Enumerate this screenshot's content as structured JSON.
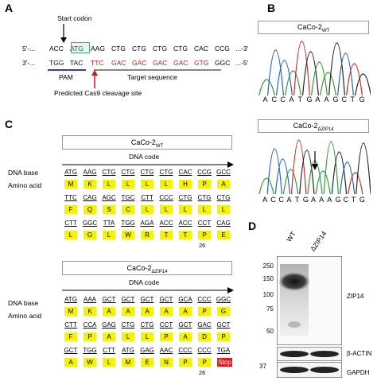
{
  "panels": {
    "A": "A",
    "B": "B",
    "C": "C",
    "D": "D"
  },
  "panelA": {
    "start_codon_label": "Start codon",
    "top_prefix": "5'-...",
    "top_codons": [
      "ACC",
      "ATG",
      "AAG",
      "CTG",
      "CTG",
      "CTG",
      "CTG",
      "CAC",
      "CCG"
    ],
    "top_suffix": "...-3'",
    "bottom_prefix": "3'-...",
    "bottom_black": [
      "TGG",
      "TAC"
    ],
    "bottom_red": [
      "TTC",
      "GAC",
      "GAC",
      "GAC",
      "GAC",
      "GTG"
    ],
    "bottom_tail": "GGC",
    "bottom_suffix": "...-5'",
    "pam_label": "PAM",
    "target_label": "Target sequence",
    "cleavage_label": "Predicted Cas9 cleavage site"
  },
  "panelB": {
    "wt_label": "CaCo-2",
    "wt_sub": "WT",
    "ko_label": "CaCo-2",
    "ko_sub": "ΔZIP14",
    "wt_bases": [
      "A",
      "C",
      "C",
      "A",
      "T",
      "G",
      "A",
      "A",
      "G",
      "C",
      "T",
      "G"
    ],
    "ko_bases": [
      "A",
      "C",
      "C",
      "A",
      "T",
      "G",
      "A",
      "A",
      "A",
      "G",
      "C",
      "T",
      "G"
    ]
  },
  "panelC": {
    "wt": {
      "title": "CaCo-2",
      "title_sub": "WT",
      "dna_code": "DNA code",
      "dna_base": "DNA base",
      "amino_acid": "Amino acid",
      "rows": [
        {
          "codons": [
            "ATG",
            "AAG",
            "CTG",
            "CTG",
            "CTG",
            "CTG",
            "CAC",
            "CCG",
            "GCC"
          ],
          "aas": [
            "M",
            "K",
            "L",
            "L",
            "L",
            "L",
            "H",
            "P",
            "A"
          ]
        },
        {
          "codons": [
            "TTC",
            "CAG",
            "AGC",
            "TGC",
            "CTT",
            "CCC",
            "CTG",
            "CTG",
            "CTG"
          ],
          "aas": [
            "F",
            "Q",
            "S",
            "C",
            "L",
            "L",
            "L",
            "L",
            "L"
          ]
        },
        {
          "codons": [
            "CTT",
            "GGC",
            "TTA",
            "TGG",
            "AGA",
            "ACC",
            "ACC",
            "CCT",
            "CAG"
          ],
          "aas": [
            "L",
            "G",
            "L",
            "W",
            "R",
            "T",
            "T",
            "P",
            "E"
          ]
        }
      ],
      "pos_label": "26"
    },
    "ko": {
      "title": "CaCo-2",
      "title_sub": "ΔZIP14",
      "dna_code": "DNA code",
      "dna_base": "DNA base",
      "amino_acid": "Amino acid",
      "rows": [
        {
          "codons": [
            "ATG",
            "AAA",
            "GCT",
            "GCT",
            "GCT",
            "GCT",
            "GCA",
            "CCC",
            "GGC"
          ],
          "aas": [
            "M",
            "K",
            "A",
            "A",
            "A",
            "A",
            "A",
            "P",
            "G"
          ]
        },
        {
          "codons": [
            "CTT",
            "CCA",
            "GAG",
            "CTG",
            "CTG",
            "CCT",
            "GCT",
            "GAC",
            "GCT"
          ],
          "aas": [
            "F",
            "P",
            "A",
            "L",
            "L",
            "P",
            "A",
            "D",
            "P"
          ]
        },
        {
          "codons": [
            "GCT",
            "TGG",
            "CTT",
            "ATG",
            "GAG",
            "AAC",
            "CCC",
            "CCC",
            "TGA"
          ],
          "aas": [
            "A",
            "W",
            "L",
            "M",
            "E",
            "N",
            "P",
            "P",
            "Stop"
          ]
        }
      ],
      "pos_label": "26"
    }
  },
  "panelD": {
    "lane_wt": "WT",
    "lane_ko": "ΔZIP14",
    "markers": [
      "250",
      "150",
      "100",
      "75",
      "50"
    ],
    "marker_37": "37",
    "zip14_label": "ZIP14",
    "actin_label": "β-ACTIN",
    "gapdh_label": "GAPDH"
  }
}
